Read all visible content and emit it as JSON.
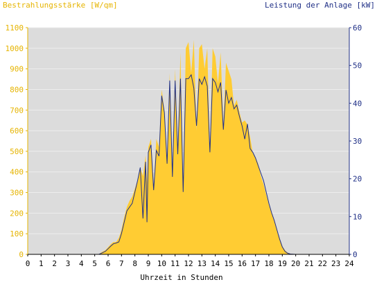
{
  "colors": {
    "irradiance": "#ffcc33",
    "power": "#1f2f86",
    "plot_background": "#dcdcdc",
    "left_label": "#e6b400",
    "right_label": "#1f2f86",
    "grid": "#eeeeee"
  },
  "chart_data": {
    "type": "area",
    "title": "",
    "left_axis_label": "Bestrahlungsstärke [W/qm]",
    "right_axis_label": "Leistung der Anlage [kW]",
    "xlabel": "Uhrzeit in Stunden",
    "xlim": [
      0,
      24
    ],
    "ylim_left": [
      0,
      1100
    ],
    "ylim_right": [
      0,
      60
    ],
    "x_ticks": [
      "0",
      "1",
      "2",
      "3",
      "4",
      "5",
      "6",
      "7",
      "8",
      "9",
      "10",
      "11",
      "12",
      "13",
      "14",
      "15",
      "16",
      "17",
      "18",
      "19",
      "20",
      "21",
      "22",
      "23",
      "24"
    ],
    "y_left_ticks": [
      "0",
      "100",
      "200",
      "300",
      "400",
      "500",
      "600",
      "700",
      "800",
      "900",
      "1000",
      "1100"
    ],
    "y_right_ticks": [
      "0",
      "10",
      "20",
      "30",
      "40",
      "50",
      "60"
    ],
    "grid": "horizontal",
    "series": [
      {
        "name": "Bestrahlungsstärke [W/qm]",
        "axis": "left",
        "style": "filled-area",
        "x": [
          0,
          5.3,
          5.5,
          5.8,
          6.0,
          6.2,
          6.4,
          6.6,
          6.8,
          7.0,
          7.2,
          7.4,
          7.6,
          7.8,
          8.0,
          8.2,
          8.4,
          8.6,
          8.8,
          8.9,
          9.0,
          9.2,
          9.4,
          9.6,
          9.8,
          10.0,
          10.2,
          10.4,
          10.6,
          10.8,
          11.0,
          11.2,
          11.4,
          11.6,
          11.8,
          12.0,
          12.2,
          12.4,
          12.6,
          12.8,
          13.0,
          13.2,
          13.4,
          13.6,
          13.8,
          14.0,
          14.2,
          14.4,
          14.6,
          14.8,
          15.0,
          15.2,
          15.4,
          15.6,
          15.8,
          16.0,
          16.2,
          16.4,
          16.6,
          16.8,
          17.0,
          17.2,
          17.4,
          17.6,
          17.8,
          18.0,
          18.2,
          18.4,
          18.6,
          18.8,
          19.0,
          19.2,
          19.4,
          19.6,
          20.0,
          24
        ],
        "y": [
          0,
          0,
          10,
          20,
          35,
          50,
          60,
          60,
          80,
          120,
          180,
          230,
          260,
          280,
          320,
          360,
          420,
          380,
          480,
          350,
          520,
          560,
          330,
          560,
          520,
          800,
          700,
          450,
          880,
          380,
          900,
          500,
          980,
          320,
          1000,
          1030,
          880,
          1040,
          600,
          1000,
          1020,
          900,
          1000,
          500,
          1000,
          960,
          830,
          980,
          620,
          930,
          890,
          850,
          720,
          750,
          690,
          640,
          650,
          630,
          570,
          490,
          470,
          440,
          380,
          340,
          290,
          240,
          200,
          160,
          120,
          80,
          40,
          20,
          8,
          3,
          0,
          0
        ]
      },
      {
        "name": "Leistung der Anlage [kW]",
        "axis": "right",
        "style": "line",
        "x": [
          0,
          5.3,
          5.5,
          5.8,
          6.0,
          6.2,
          6.4,
          6.6,
          6.8,
          7.0,
          7.2,
          7.4,
          7.6,
          7.8,
          8.0,
          8.2,
          8.4,
          8.6,
          8.8,
          8.9,
          9.0,
          9.2,
          9.4,
          9.6,
          9.8,
          10.0,
          10.2,
          10.4,
          10.6,
          10.8,
          11.0,
          11.2,
          11.4,
          11.6,
          11.8,
          12.0,
          12.2,
          12.4,
          12.6,
          12.8,
          13.0,
          13.2,
          13.4,
          13.6,
          13.8,
          14.0,
          14.2,
          14.4,
          14.6,
          14.8,
          15.0,
          15.2,
          15.4,
          15.6,
          15.8,
          16.0,
          16.2,
          16.4,
          16.6,
          16.8,
          17.0,
          17.2,
          17.4,
          17.6,
          17.8,
          18.0,
          18.2,
          18.4,
          18.6,
          18.8,
          19.0,
          19.2,
          19.4,
          19.6,
          20.0,
          24
        ],
        "y": [
          0,
          0,
          0.3,
          0.8,
          1.5,
          2.2,
          2.8,
          3.0,
          3.3,
          5.5,
          8.5,
          11.5,
          12.5,
          13.5,
          16.5,
          19.5,
          23,
          9.5,
          24.5,
          8.5,
          27,
          29,
          17,
          27.5,
          26,
          42,
          37.5,
          24,
          46,
          20.5,
          46,
          26.5,
          46.5,
          16.5,
          46.5,
          46.5,
          47.5,
          44,
          34,
          46.5,
          45,
          47,
          44.5,
          27,
          46.5,
          45.5,
          43,
          45.5,
          33,
          43.5,
          40,
          41.5,
          38.5,
          39.5,
          36.5,
          34,
          30.5,
          34.5,
          28,
          27,
          25.5,
          23.5,
          21.5,
          19.5,
          16.5,
          13.5,
          11,
          9,
          6.5,
          4,
          2,
          0.8,
          0.3,
          0.1,
          0,
          0
        ]
      }
    ]
  }
}
